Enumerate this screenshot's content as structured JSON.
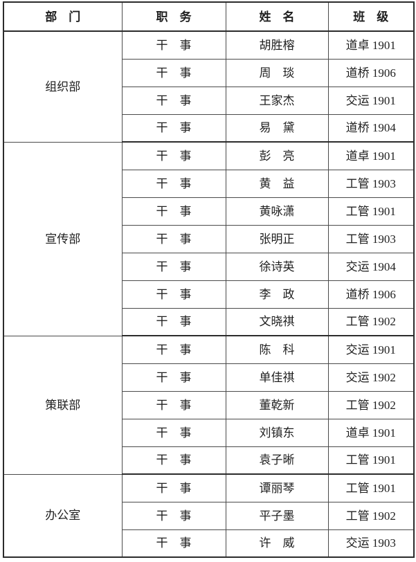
{
  "table": {
    "columns": {
      "department": "部　门",
      "position": "职　务",
      "name": "姓　名",
      "class": "班　级"
    },
    "groups": [
      {
        "department": "组织部",
        "members": [
          {
            "position": "干　事",
            "name": "胡胜榕",
            "class": "道卓 1901"
          },
          {
            "position": "干　事",
            "name": "周　琰",
            "class": "道桥 1906"
          },
          {
            "position": "干　事",
            "name": "王家杰",
            "class": "交运 1901"
          },
          {
            "position": "干　事",
            "name": "易　黛",
            "class": "道桥 1904"
          }
        ]
      },
      {
        "department": "宣传部",
        "members": [
          {
            "position": "干　事",
            "name": "彭　亮",
            "class": "道卓 1901"
          },
          {
            "position": "干　事",
            "name": "黄　益",
            "class": "工管 1903"
          },
          {
            "position": "干　事",
            "name": "黄咏潇",
            "class": "工管 1901"
          },
          {
            "position": "干　事",
            "name": "张明正",
            "class": "工管 1903"
          },
          {
            "position": "干　事",
            "name": "徐诗英",
            "class": "交运 1904"
          },
          {
            "position": "干　事",
            "name": "李　政",
            "class": "道桥 1906"
          },
          {
            "position": "干　事",
            "name": "文晓祺",
            "class": "工管 1902"
          }
        ]
      },
      {
        "department": "策联部",
        "members": [
          {
            "position": "干　事",
            "name": "陈　科",
            "class": "交运 1901"
          },
          {
            "position": "干　事",
            "name": "单佳祺",
            "class": "交运 1902"
          },
          {
            "position": "干　事",
            "name": "董乾新",
            "class": "工管 1902"
          },
          {
            "position": "干　事",
            "name": "刘镇东",
            "class": "道卓 1901"
          },
          {
            "position": "干　事",
            "name": "袁子晰",
            "class": "工管 1901"
          }
        ]
      },
      {
        "department": "办公室",
        "members": [
          {
            "position": "干　事",
            "name": "谭丽琴",
            "class": "工管 1901"
          },
          {
            "position": "干　事",
            "name": "平子墨",
            "class": "工管 1902"
          },
          {
            "position": "干　事",
            "name": "许　威",
            "class": "交运 1903"
          }
        ]
      }
    ]
  }
}
